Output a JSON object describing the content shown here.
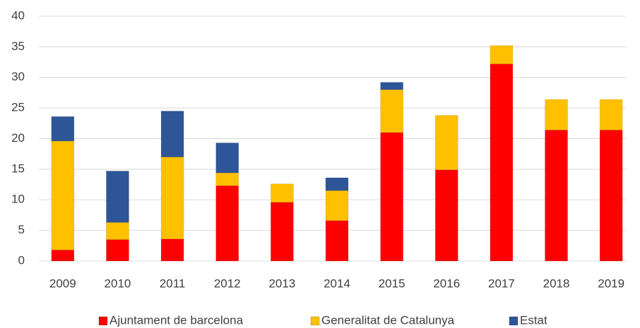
{
  "chart_data": {
    "type": "stacked_bar",
    "categories": [
      "2009",
      "2010",
      "2011",
      "2012",
      "2013",
      "2014",
      "2015",
      "2016",
      "2017",
      "2018",
      "2019"
    ],
    "series": [
      {
        "name": "Ajuntament de barcelona",
        "color": "#ff0000",
        "values": [
          1.8,
          3.5,
          3.6,
          12.3,
          9.6,
          6.6,
          21,
          14.9,
          32.2,
          21.4,
          21.4
        ]
      },
      {
        "name": "Generalitat de Catalunya",
        "color": "#ffc000",
        "values": [
          17.8,
          2.8,
          13.4,
          2.1,
          3.0,
          4.9,
          7,
          8.9,
          3.0,
          5.0,
          5.0
        ]
      },
      {
        "name": "Estat",
        "color": "#2e5597",
        "values": [
          4.0,
          8.4,
          7.5,
          4.9,
          0,
          2.1,
          1.2,
          0,
          0,
          0,
          0
        ]
      }
    ],
    "ylim": [
      0,
      40
    ],
    "yticks": [
      0,
      5,
      10,
      15,
      20,
      25,
      30,
      35,
      40
    ],
    "grid": true,
    "legend": "bottom"
  }
}
